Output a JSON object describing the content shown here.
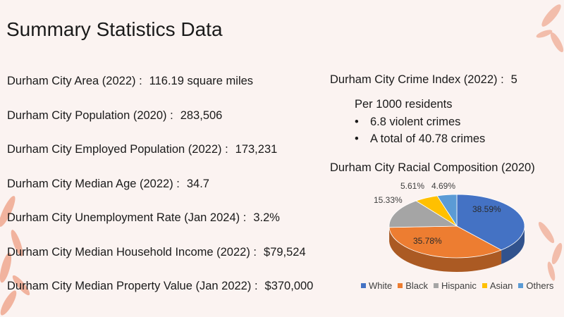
{
  "title": "Summary Statistics Data",
  "stats": [
    {
      "label": "Durham City Area (2022) :",
      "value": "116.19 square miles"
    },
    {
      "label": "Durham City Population (2020) :",
      "value": "283,506"
    },
    {
      "label": "Durham City Employed Population (2022) :",
      "value": "173,231"
    },
    {
      "label": "Durham City Median Age (2022) :",
      "value": "34.7"
    },
    {
      "label": "Durham City Unemployment Rate (Jan 2024) :",
      "value": "3.2%"
    },
    {
      "label": "Durham City Median Household Income (2022) :",
      "value": "$79,524"
    },
    {
      "label": "Durham City Median Property Value (Jan 2022) :",
      "value": "$370,000"
    }
  ],
  "crime": {
    "label": "Durham City Crime Index (2022) :",
    "value": "5",
    "per": "Per 1000 residents",
    "bullets": [
      "6.8 violent crimes",
      "A total of 40.78 crimes"
    ]
  },
  "chart_data": {
    "type": "pie",
    "title": "Durham City Racial Composition (2020)",
    "categories": [
      "White",
      "Black",
      "Hispanic",
      "Asian",
      "Others"
    ],
    "values": [
      38.59,
      35.78,
      15.33,
      5.61,
      4.69
    ],
    "labels": [
      "38.59%",
      "35.78%",
      "15.33%",
      "5.61%",
      "4.69%"
    ],
    "colors": [
      "#4472c4",
      "#ed7d31",
      "#a5a5a5",
      "#ffc000",
      "#5b9bd5"
    ],
    "legend": "bottom",
    "style": "3d"
  }
}
